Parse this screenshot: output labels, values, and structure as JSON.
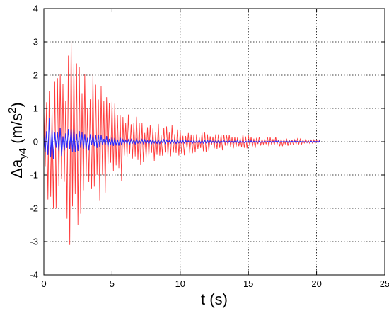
{
  "chart_data": {
    "type": "line",
    "xlabel": "t (s)",
    "ylabel": {
      "base": "Δa",
      "subscript": "y4",
      "unit_open": " (m/s",
      "unit_sup": "2",
      "unit_close": ")"
    },
    "xlim": [
      0,
      25
    ],
    "ylim": [
      -4,
      4
    ],
    "xticks": [
      "0",
      "5",
      "10",
      "15",
      "20",
      "25"
    ],
    "yticks": [
      "-4",
      "-3",
      "-2",
      "-1",
      "0",
      "1",
      "2",
      "3",
      "4"
    ],
    "grid": true,
    "legend": "none",
    "colors": {
      "red_series": "#ff3b3b",
      "blue_series": "#2b2bff"
    },
    "series": [
      {
        "color_key": "red_series",
        "t_end": 20.2,
        "frequency_hz": 5,
        "envelope": [
          [
            0,
            1.2
          ],
          [
            0.5,
            2.1
          ],
          [
            1,
            2.3
          ],
          [
            1.5,
            2.4
          ],
          [
            2,
            3.1
          ],
          [
            2.5,
            2.4
          ],
          [
            3,
            2.3
          ],
          [
            3.5,
            2.1
          ],
          [
            4,
            2.0
          ],
          [
            4.5,
            1.7
          ],
          [
            5,
            1.5
          ],
          [
            6,
            1.1
          ],
          [
            7,
            0.8
          ],
          [
            8,
            0.6
          ],
          [
            10,
            0.45
          ],
          [
            12,
            0.3
          ],
          [
            15,
            0.22
          ],
          [
            18,
            0.12
          ],
          [
            20.2,
            0.06
          ]
        ],
        "peaks": [
          [
            2.05,
            3.05
          ],
          [
            2.0,
            -3.1
          ],
          [
            2.6,
            -2.5
          ],
          [
            2.4,
            2.35
          ]
        ]
      },
      {
        "color_key": "blue_series",
        "t_end": 20.2,
        "frequency_hz": 5,
        "envelope": [
          [
            0,
            0.3
          ],
          [
            0.3,
            0.7
          ],
          [
            1,
            0.45
          ],
          [
            2,
            0.4
          ],
          [
            3,
            0.3
          ],
          [
            4,
            0.22
          ],
          [
            5,
            0.15
          ],
          [
            7,
            0.08
          ],
          [
            10,
            0.05
          ],
          [
            15,
            0.03
          ],
          [
            20.2,
            0.02
          ]
        ],
        "peaks": [
          [
            0.35,
            0.72
          ],
          [
            0.4,
            -0.4
          ]
        ]
      }
    ]
  }
}
